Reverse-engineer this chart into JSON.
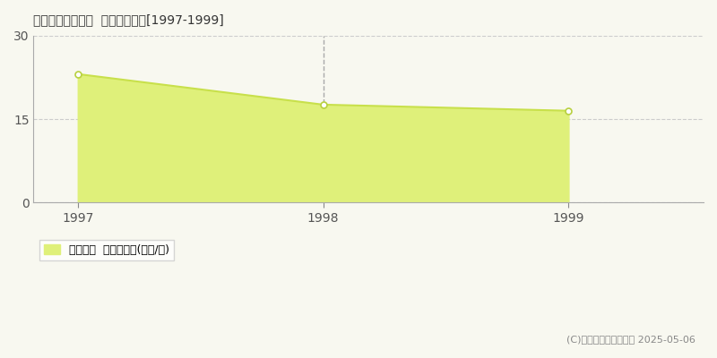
{
  "title": "入間郡越生町大満  基準地価推移[1997-1999]",
  "years": [
    1997,
    1998,
    1999
  ],
  "values": [
    23.1,
    17.6,
    16.5
  ],
  "line_color": "#c8e04b",
  "fill_color": "#dff07a",
  "marker_color": "#b8d040",
  "marker_face": "#ffffff",
  "bg_color": "#f8f8f0",
  "grid_color": "#cccccc",
  "vline_color": "#aaaaaa",
  "ylim": [
    0,
    30
  ],
  "yticks": [
    0,
    15,
    30
  ],
  "title_fontsize": 13,
  "legend_label": "基準地価  平均坪単価(万円/坪)",
  "copyright_text": "(C)土地価格ドットコム 2025-05-06"
}
